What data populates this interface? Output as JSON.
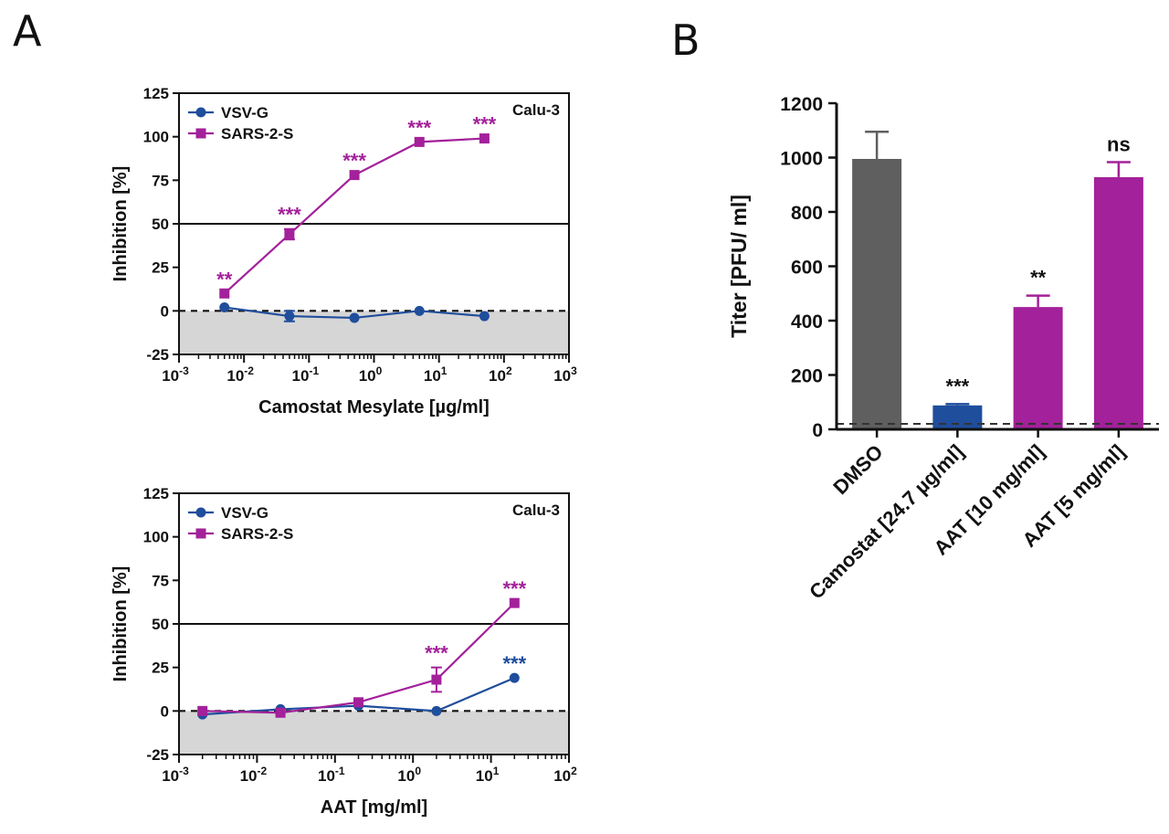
{
  "panels": {
    "a": "A",
    "b": "B"
  },
  "colors": {
    "vsv": "#1f4e9c",
    "sars": "#a3219a",
    "dmso": "#5f5f5f",
    "camostat": "#1f4e9c",
    "aat": "#a3219a",
    "shade": "#d6d6d6"
  },
  "chart_data": [
    {
      "type": "line",
      "panel": "A",
      "xlabel": "Camostat Mesylate [µg/ml]",
      "ylabel": "Inhibition [%]",
      "x_scale": "log",
      "xlim": [
        0.001,
        1000
      ],
      "x_ticks": [
        {
          "base": "10",
          "exp": "-3"
        },
        {
          "base": "10",
          "exp": "-2"
        },
        {
          "base": "10",
          "exp": "-1"
        },
        {
          "base": "10",
          "exp": "0"
        },
        {
          "base": "10",
          "exp": "1"
        },
        {
          "base": "10",
          "exp": "2"
        },
        {
          "base": "10",
          "exp": "3"
        }
      ],
      "ylim": [
        -25,
        125
      ],
      "y_ticks": [
        "125",
        "100",
        "75",
        "50",
        "25",
        "0",
        "-25"
      ],
      "cell_line": "Calu-3",
      "reference_lines": {
        "solid": 50,
        "dashed": 0
      },
      "shaded_below": 0,
      "legend_position": "top-left",
      "series": [
        {
          "name": "VSV-G",
          "marker": "circle",
          "color": "#1f4e9c",
          "x": [
            0.005,
            0.05,
            0.5,
            5,
            50
          ],
          "y": [
            2,
            -3,
            -4,
            0,
            -3
          ],
          "err": [
            0,
            3,
            0,
            0,
            0
          ],
          "sig": [
            "",
            "",
            "",
            "",
            ""
          ]
        },
        {
          "name": "SARS-2-S",
          "marker": "square",
          "color": "#a3219a",
          "x": [
            0.005,
            0.05,
            0.5,
            5,
            50
          ],
          "y": [
            10,
            44,
            78,
            97,
            99
          ],
          "err": [
            0,
            3,
            0,
            0,
            0
          ],
          "sig": [
            "**",
            "***",
            "***",
            "***",
            "***"
          ]
        }
      ]
    },
    {
      "type": "line",
      "panel": "A",
      "xlabel": "AAT [mg/ml]",
      "ylabel": "Inhibition [%]",
      "x_scale": "log",
      "xlim": [
        0.001,
        100
      ],
      "x_ticks": [
        {
          "base": "10",
          "exp": "-3"
        },
        {
          "base": "10",
          "exp": "-2"
        },
        {
          "base": "10",
          "exp": "-1"
        },
        {
          "base": "10",
          "exp": "0"
        },
        {
          "base": "10",
          "exp": "1"
        },
        {
          "base": "10",
          "exp": "2"
        }
      ],
      "ylim": [
        -25,
        125
      ],
      "y_ticks": [
        "125",
        "100",
        "75",
        "50",
        "25",
        "0",
        "-25"
      ],
      "cell_line": "Calu-3",
      "reference_lines": {
        "solid": 50,
        "dashed": 0
      },
      "shaded_below": 0,
      "legend_position": "top-left",
      "series": [
        {
          "name": "VSV-G",
          "marker": "circle",
          "color": "#1f4e9c",
          "x": [
            0.002,
            0.02,
            0.2,
            2,
            20
          ],
          "y": [
            -2,
            1,
            3,
            0,
            19
          ],
          "err": [
            0,
            0,
            0,
            0,
            0
          ],
          "sig": [
            "",
            "",
            "",
            "",
            "***"
          ]
        },
        {
          "name": "SARS-2-S",
          "marker": "square",
          "color": "#a3219a",
          "x": [
            0.002,
            0.02,
            0.2,
            2,
            20
          ],
          "y": [
            0,
            -1,
            5,
            18,
            62
          ],
          "err": [
            0,
            0,
            0,
            7,
            0
          ],
          "sig": [
            "",
            "",
            "",
            "***",
            "***"
          ]
        }
      ]
    },
    {
      "type": "bar",
      "panel": "B",
      "ylabel": "Titer [PFU/ ml]",
      "ylim": [
        0,
        1200
      ],
      "y_ticks": [
        "1200",
        "1000",
        "800",
        "600",
        "400",
        "200",
        "0"
      ],
      "dashed_line": 20,
      "categories": [
        "DMSO",
        "Camostat [24.7 µg/ml]",
        "AAT [10 mg/ml]",
        "AAT [5 mg/ml]"
      ],
      "values": [
        995,
        88,
        450,
        928
      ],
      "errors": [
        100,
        5,
        42,
        55
      ],
      "colors": [
        "#5f5f5f",
        "#1f4e9c",
        "#a3219a",
        "#a3219a"
      ],
      "sig": [
        "",
        "***",
        "**",
        "ns"
      ]
    }
  ]
}
